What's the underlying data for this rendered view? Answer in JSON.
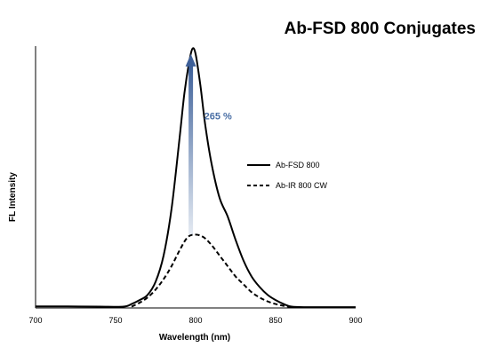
{
  "chart_data": {
    "type": "line",
    "title": "Ab-FSD 800 Conjugates",
    "xlabel": "Wavelength (nm)",
    "ylabel": "FL Intensity",
    "xlim": [
      700,
      900
    ],
    "ylim": [
      0,
      100
    ],
    "x_ticks": [
      "700",
      "750",
      "800",
      "850",
      "900"
    ],
    "grid": false,
    "legend_position": "right",
    "annotation": {
      "text": "265 %",
      "color": "#4a6fa5",
      "from_y": 28,
      "to_y": 97,
      "x": 797
    },
    "series": [
      {
        "name": "Ab-FSD 800",
        "style": "solid",
        "color": "#000000",
        "x": [
          700,
          720,
          740,
          755,
          760,
          765,
          770,
          775,
          780,
          785,
          790,
          793,
          796,
          798,
          800,
          803,
          806,
          810,
          815,
          820,
          825,
          830,
          835,
          840,
          845,
          850,
          855,
          860,
          870,
          880,
          900
        ],
        "y": [
          0.6,
          0.6,
          0.5,
          0.5,
          1.5,
          3,
          5,
          10,
          20,
          38,
          65,
          82,
          94,
          99,
          97,
          85,
          70,
          55,
          42,
          35,
          26,
          18,
          12,
          8,
          5,
          3,
          1.5,
          0.5,
          0.3,
          0.3,
          0.3
        ]
      },
      {
        "name": "Ab-IR 800 CW",
        "style": "dashed",
        "color": "#000000",
        "x": [
          760,
          765,
          770,
          775,
          780,
          785,
          790,
          795,
          800,
          805,
          810,
          815,
          820,
          825,
          830,
          835,
          840,
          845,
          850,
          855,
          860
        ],
        "y": [
          0.5,
          2,
          4,
          7,
          11,
          16,
          22,
          27,
          28,
          27,
          24,
          20,
          16,
          12,
          9,
          6,
          4,
          2.5,
          1.5,
          0.8,
          0.3
        ]
      }
    ]
  }
}
